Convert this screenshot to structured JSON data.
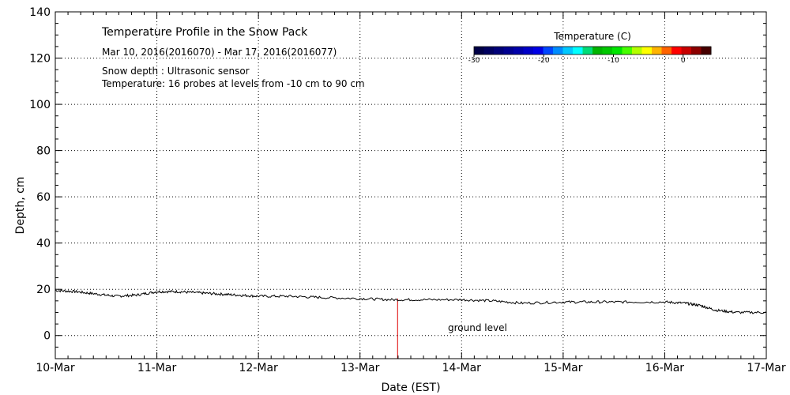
{
  "chart_data": {
    "type": "line",
    "title": "Temperature Profile in the Snow Pack",
    "subtitle": "Mar 10, 2016(2016070) - Mar 17, 2016(2016077)",
    "notes": [
      "Snow depth : Ultrasonic sensor",
      "Temperature: 16 probes at levels from -10 cm to 90 cm"
    ],
    "xlabel": "Date (EST)",
    "ylabel": "Depth, cm",
    "x_ticks": [
      "10-Mar",
      "11-Mar",
      "12-Mar",
      "13-Mar",
      "14-Mar",
      "15-Mar",
      "16-Mar",
      "17-Mar"
    ],
    "xlim": [
      0,
      7
    ],
    "ylim": [
      -10,
      140
    ],
    "y_ticks": [
      0,
      20,
      40,
      60,
      80,
      100,
      120,
      140
    ],
    "grid": true,
    "annotation": "ground level",
    "series": [
      {
        "color": "#000000",
        "x": [
          0.0,
          0.2,
          0.4,
          0.6,
          0.8,
          1.0,
          1.2,
          1.4,
          1.6,
          1.8,
          2.0,
          2.3,
          2.6,
          3.0,
          3.3,
          3.6,
          4.0,
          4.3,
          4.6,
          5.0,
          5.3,
          5.6,
          6.0,
          6.2,
          6.35,
          6.5,
          6.7,
          7.0
        ],
        "y": [
          19.5,
          19,
          18,
          17,
          17.5,
          19,
          19,
          18.5,
          18,
          17.5,
          17,
          17,
          16.5,
          16,
          15.5,
          15.5,
          15.5,
          15,
          14,
          14.5,
          14.5,
          14.5,
          14.5,
          14,
          13,
          11,
          10,
          10
        ]
      }
    ],
    "marker_line": {
      "x": 3.37,
      "y_range": [
        -10,
        16
      ],
      "color": "#e00000"
    },
    "colorbar": {
      "title": "Temperature (C)",
      "ticks": [
        "-30",
        "-20",
        "-10",
        "0"
      ],
      "range": [
        -30,
        4
      ],
      "colors": [
        "#000046",
        "#00005f",
        "#000078",
        "#000091",
        "#0000aa",
        "#0000c8",
        "#0000e6",
        "#0046ff",
        "#008cff",
        "#00c8ff",
        "#00ffff",
        "#00dc78",
        "#00b400",
        "#00c800",
        "#00e600",
        "#46ff00",
        "#b4ff00",
        "#ffff00",
        "#ffb400",
        "#ff6400",
        "#ff0000",
        "#c80000",
        "#8c0000",
        "#460000"
      ]
    }
  }
}
